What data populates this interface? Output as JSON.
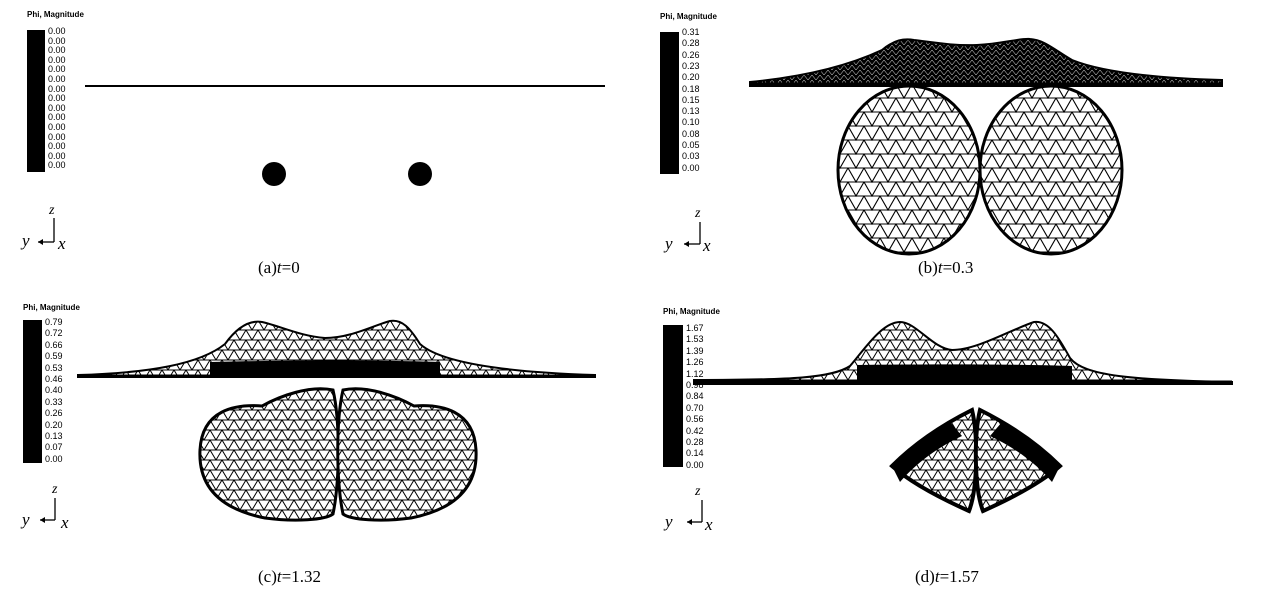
{
  "panels": [
    {
      "id": "a",
      "legend_title": "Phi, Magnitude",
      "legend_ticks": [
        "0.00",
        "0.00",
        "0.00",
        "0.00",
        "0.00",
        "0.00",
        "0.00",
        "0.00",
        "0.00",
        "0.00",
        "0.00",
        "0.00",
        "0.00",
        "0.00",
        "0.00"
      ],
      "caption_prefix": "(a)",
      "caption_var": "t",
      "caption_value": "=0",
      "axis": {
        "z": "z",
        "y": "y",
        "x": "x"
      }
    },
    {
      "id": "b",
      "legend_title": "Phi, Magnitude",
      "legend_ticks": [
        "0.31",
        "0.28",
        "0.26",
        "0.23",
        "0.20",
        "0.18",
        "0.15",
        "0.13",
        "0.10",
        "0.08",
        "0.05",
        "0.03",
        "0.00"
      ],
      "caption_prefix": "(b)",
      "caption_var": "t",
      "caption_value": "=0.3",
      "axis": {
        "z": "z",
        "y": "y",
        "x": "x"
      }
    },
    {
      "id": "c",
      "legend_title": "Phi, Magnitude",
      "legend_ticks": [
        "0.79",
        "0.72",
        "0.66",
        "0.59",
        "0.53",
        "0.46",
        "0.40",
        "0.33",
        "0.26",
        "0.20",
        "0.13",
        "0.07",
        "0.00"
      ],
      "caption_prefix": "(c)",
      "caption_var": "t",
      "caption_value": "=1.32",
      "axis": {
        "z": "z",
        "y": "y",
        "x": "x"
      }
    },
    {
      "id": "d",
      "legend_title": "Phi, Magnitude",
      "legend_ticks": [
        "1.67",
        "1.53",
        "1.39",
        "1.26",
        "1.12",
        "0.98",
        "0.84",
        "0.70",
        "0.56",
        "0.42",
        "0.28",
        "0.14",
        "0.00"
      ],
      "caption_prefix": "(d)",
      "caption_var": "t",
      "caption_value": "=1.57",
      "axis": {
        "z": "z",
        "y": "y",
        "x": "x"
      }
    }
  ]
}
